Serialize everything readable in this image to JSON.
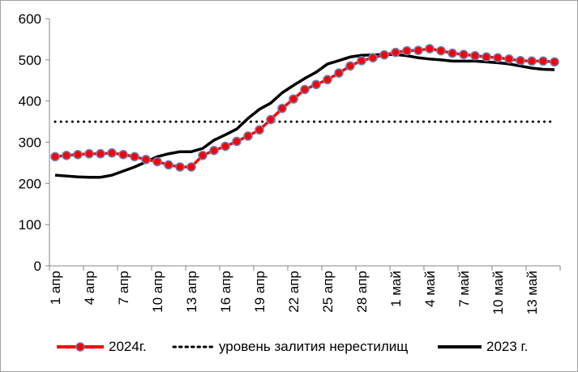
{
  "chart_data": {
    "type": "line",
    "title": "",
    "xlabel": "",
    "ylabel": "",
    "ylim": [
      0,
      600
    ],
    "yticks": [
      "0",
      "100",
      "200",
      "300",
      "400",
      "500",
      "600"
    ],
    "x": [
      "1 апр",
      "2 апр",
      "3 апр",
      "4 апр",
      "5 апр",
      "6 апр",
      "7 апр",
      "8 апр",
      "9 апр",
      "10 апр",
      "11 апр",
      "12 апр",
      "13 апр",
      "14 апр",
      "15 апр",
      "16 апр",
      "17 апр",
      "18 апр",
      "19 апр",
      "20 апр",
      "21 апр",
      "22 апр",
      "23 апр",
      "24 апр",
      "25 апр",
      "26 апр",
      "27 апр",
      "28 апр",
      "29 апр",
      "30 апр",
      "1 май",
      "2 май",
      "3 май",
      "4 май",
      "5 май",
      "6 май",
      "7 май",
      "8 май",
      "9 май",
      "10 май",
      "11 май",
      "12 май",
      "13 май",
      "14 май",
      "15 май"
    ],
    "xtick_labels": [
      "1 апр",
      "4 апр",
      "7 апр",
      "10 апр",
      "13 апр",
      "16 апр",
      "19 апр",
      "22 апр",
      "25 апр",
      "28 апр",
      "1 май",
      "4 май",
      "7 май",
      "10 май",
      "13 май"
    ],
    "series": [
      {
        "name": "2024г.",
        "color": "#ff0000",
        "marker_edge": "#6b7fb5",
        "values": [
          265,
          268,
          270,
          272,
          272,
          274,
          270,
          265,
          258,
          253,
          245,
          240,
          240,
          268,
          280,
          290,
          302,
          315,
          330,
          355,
          382,
          405,
          428,
          440,
          452,
          468,
          485,
          498,
          505,
          512,
          518,
          522,
          523,
          527,
          522,
          516,
          513,
          510,
          507,
          505,
          502,
          498,
          497,
          497,
          495
        ]
      },
      {
        "name": "уровень залития нерестилищ",
        "color": "#000000",
        "style": "dotted",
        "values": [
          350,
          350,
          350,
          350,
          350,
          350,
          350,
          350,
          350,
          350,
          350,
          350,
          350,
          350,
          350,
          350,
          350,
          350,
          350,
          350,
          350,
          350,
          350,
          350,
          350,
          350,
          350,
          350,
          350,
          350,
          350,
          350,
          350,
          350,
          350,
          350,
          350,
          350,
          350,
          350,
          350,
          350,
          350,
          350,
          350
        ]
      },
      {
        "name": "2023 г.",
        "color": "#000000",
        "values": [
          220,
          218,
          216,
          215,
          215,
          220,
          230,
          240,
          252,
          265,
          272,
          277,
          277,
          285,
          305,
          318,
          332,
          358,
          380,
          395,
          420,
          438,
          455,
          470,
          490,
          498,
          507,
          511,
          512,
          513,
          513,
          510,
          505,
          502,
          500,
          497,
          497,
          497,
          495,
          493,
          490,
          485,
          480,
          477,
          476
        ]
      }
    ],
    "grid": false,
    "legend": "bottom"
  }
}
